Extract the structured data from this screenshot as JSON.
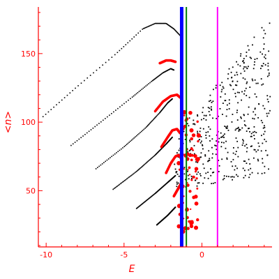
{
  "chart_data": {
    "type": "scatter",
    "title": "",
    "xlabel": "E",
    "ylabel": "<n>",
    "xlim": [
      -10.5,
      4.5
    ],
    "ylim": [
      9,
      184
    ],
    "x_ticks": [
      -10,
      -5,
      0
    ],
    "y_ticks": [
      50,
      100,
      150
    ],
    "grid": false,
    "axis_color": "#ff0000",
    "series": [
      {
        "color": "#000000",
        "style": "dotted-curves",
        "curves": [
          {
            "points": [
              [
                -10.2,
                104
              ],
              [
                -8,
                126
              ],
              [
                -5.5,
                150
              ],
              [
                -3.8,
                168
              ],
              [
                -3,
                172
              ],
              [
                -2.3,
                172
              ],
              [
                -1.8,
                168
              ],
              [
                -1.3,
                162
              ]
            ]
          },
          {
            "points": [
              [
                -8.4,
                83
              ],
              [
                -6.5,
                100
              ],
              [
                -4.5,
                118
              ],
              [
                -3.2,
                130
              ],
              [
                -2.5,
                136
              ],
              [
                -2.0,
                139
              ],
              [
                -1.8,
                138
              ]
            ]
          },
          {
            "points": [
              [
                -6.8,
                66
              ],
              [
                -5,
                82
              ],
              [
                -3.6,
                96
              ],
              [
                -2.7,
                107
              ],
              [
                -2.2,
                114
              ],
              [
                -1.9,
                117
              ]
            ]
          },
          {
            "points": [
              [
                -5.7,
                51
              ],
              [
                -4.2,
                64
              ],
              [
                -3.0,
                76
              ],
              [
                -2.3,
                84
              ],
              [
                -1.9,
                89
              ]
            ]
          },
          {
            "points": [
              [
                -4.2,
                37
              ],
              [
                -3.0,
                48
              ],
              [
                -2.2,
                56
              ],
              [
                -1.7,
                61
              ]
            ]
          },
          {
            "points": [
              [
                -2.9,
                25
              ],
              [
                -2.2,
                32
              ],
              [
                -1.7,
                38
              ]
            ]
          }
        ],
        "scatter": {
          "x_range": [
            -1.8,
            4.4
          ],
          "y_range": [
            40,
            184
          ],
          "count": 440
        }
      },
      {
        "color": "#ff0000",
        "style": "dots",
        "curves": [
          {
            "points": [
              [
                -2.7,
                143
              ],
              [
                -2.3,
                145
              ],
              [
                -2.0,
                145
              ],
              [
                -1.7,
                144
              ]
            ]
          },
          {
            "points": [
              [
                -3.0,
                108
              ],
              [
                -2.5,
                115
              ],
              [
                -2.0,
                119
              ],
              [
                -1.6,
                120
              ],
              [
                -1.4,
                118
              ]
            ]
          },
          {
            "points": [
              [
                -2.6,
                82
              ],
              [
                -2.2,
                89
              ],
              [
                -1.9,
                94
              ],
              [
                -1.6,
                95
              ],
              [
                -1.4,
                92
              ]
            ]
          },
          {
            "points": [
              [
                -2.3,
                63
              ],
              [
                -2.0,
                70
              ],
              [
                -1.7,
                75
              ],
              [
                -1.5,
                76
              ],
              [
                -1.3,
                73
              ]
            ]
          },
          {
            "points": [
              [
                -1.8,
                46
              ],
              [
                -1.5,
                52
              ],
              [
                -1.3,
                56
              ]
            ]
          }
        ],
        "scatter": {
          "x_range": [
            -1.5,
            -0.2
          ],
          "y_range": [
            20,
            110
          ],
          "count": 70
        }
      }
    ],
    "vlines": [
      {
        "x": -1.3,
        "color": "#0000ff",
        "width": 5
      },
      {
        "x": -1.0,
        "color": "#008000",
        "width": 2
      },
      {
        "x": 1.0,
        "color": "#ff00ff",
        "width": 2
      }
    ]
  }
}
